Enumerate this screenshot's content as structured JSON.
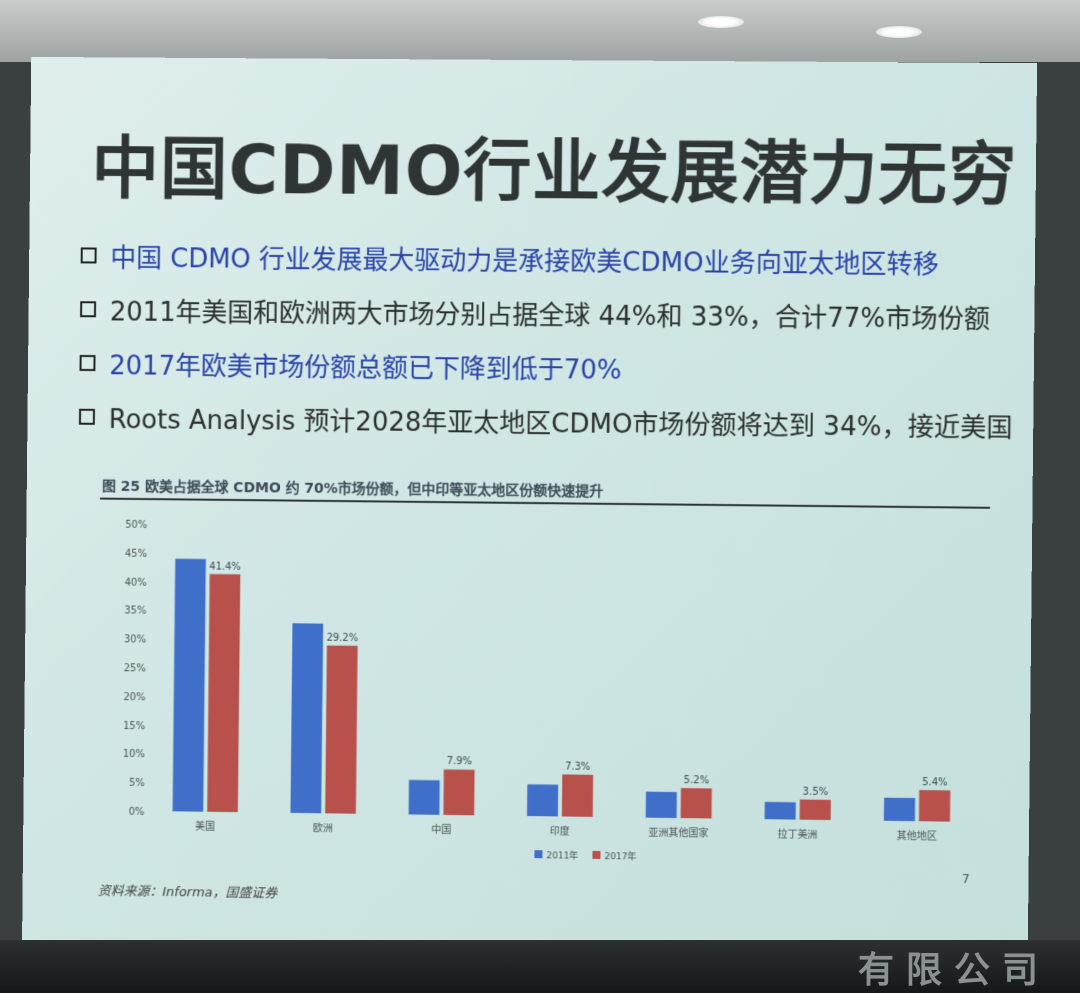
{
  "slide": {
    "title": "中国CDMO行业发展潜力无穷",
    "bullets": [
      {
        "text": "中国 CDMO 行业发展最大驱动力是承接欧美CDMO业务向亚太地区转移",
        "style": "blue"
      },
      {
        "text": "2011年美国和欧洲两大市场分别占据全球 44%和 33%，合计77%市场份额",
        "style": "dark"
      },
      {
        "text": "2017年欧美市场份额总额已下降到低于70%",
        "style": "blue"
      },
      {
        "text": "Roots Analysis 预计2028年亚太地区CDMO市场份额将达到 34%，接近美国",
        "style": "dark"
      }
    ],
    "figure_title": "图 25 欧美占据全球 CDMO 约 70%市场份额，但中印等亚太地区份额快速提升",
    "source": "资料来源：Informa，国盛证券",
    "page_number": "7"
  },
  "bottom_sign": "有限公司",
  "colors": {
    "series_2011": "#3f6fc8",
    "series_2017": "#b8514c",
    "title": "#2f3534",
    "blue_text": "#2a43a8"
  },
  "chart_data": {
    "type": "bar",
    "categories": [
      "美国",
      "欧洲",
      "中国",
      "印度",
      "亚洲其他国家",
      "拉丁美洲",
      "其他地区"
    ],
    "series": [
      {
        "name": "2011年",
        "values": [
          44.0,
          33.0,
          6.0,
          5.5,
          4.5,
          3.0,
          4.0
        ],
        "labels": [
          "",
          "",
          "",
          "",
          "",
          "",
          ""
        ]
      },
      {
        "name": "2017年",
        "values": [
          41.4,
          29.2,
          7.9,
          7.3,
          5.2,
          3.5,
          5.4
        ],
        "labels": [
          "41.4%",
          "29.2%",
          "7.9%",
          "7.3%",
          "5.2%",
          "3.5%",
          "5.4%"
        ]
      }
    ],
    "y_ticks": [
      "0%",
      "5%",
      "10%",
      "15%",
      "20%",
      "25%",
      "30%",
      "35%",
      "40%",
      "45%",
      "50%"
    ],
    "ylim": [
      0,
      50
    ],
    "legend_position": "bottom"
  }
}
